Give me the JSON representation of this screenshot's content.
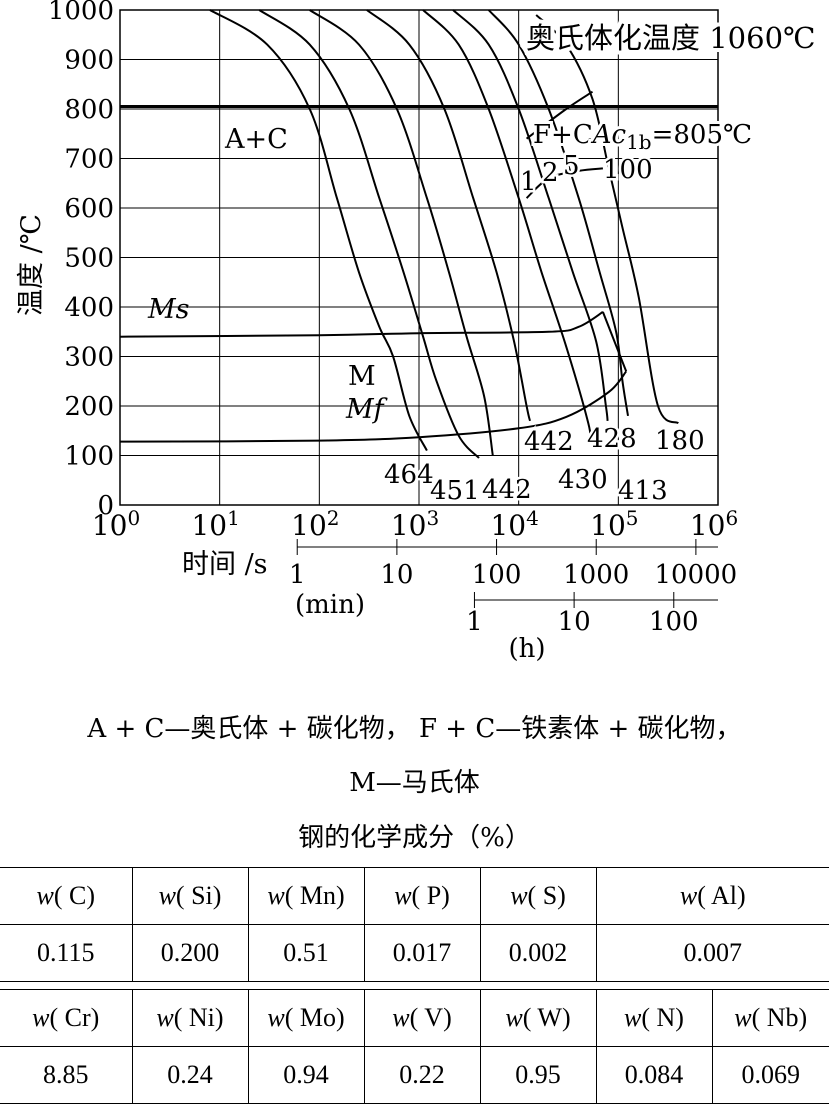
{
  "chart_data": {
    "type": "line",
    "title": "",
    "xlabel": "时间 /s",
    "ylabel": "温度 /℃",
    "xscale": "log",
    "xlim": [
      1,
      1000000
    ],
    "ylim": [
      0,
      1000
    ],
    "grid": true,
    "x_ticks": [
      {
        "value": 1,
        "label": "10",
        "exp": "0"
      },
      {
        "value": 10,
        "label": "10",
        "exp": "1"
      },
      {
        "value": 100,
        "label": "10",
        "exp": "2"
      },
      {
        "value": 1000,
        "label": "10",
        "exp": "3"
      },
      {
        "value": 10000,
        "label": "10",
        "exp": "4"
      },
      {
        "value": 100000,
        "label": "10",
        "exp": "5"
      },
      {
        "value": 1000000,
        "label": "10",
        "exp": "6"
      }
    ],
    "y_ticks": [
      "0",
      "100",
      "200",
      "300",
      "400",
      "500",
      "600",
      "700",
      "800",
      "900",
      "1000"
    ],
    "min_axis": {
      "unit": "(min)",
      "ticks": [
        {
          "value": 1,
          "label": "1"
        },
        {
          "value": 10,
          "label": "10"
        },
        {
          "value": 100,
          "label": "100"
        },
        {
          "value": 1000,
          "label": "1000"
        },
        {
          "value": 10000,
          "label": "10000"
        }
      ]
    },
    "hour_axis": {
      "unit": "(h)",
      "ticks": [
        {
          "value": 1,
          "label": "1"
        },
        {
          "value": 10,
          "label": "10"
        },
        {
          "value": 100,
          "label": "100"
        }
      ]
    },
    "austenitizing_label": "奥氏体化温度 1060℃",
    "ac1b": {
      "temp": 805,
      "label_prefix": "F+C",
      "label_sym": "Ac",
      "label_sub": "1b",
      "label_suffix": "=805℃"
    },
    "region_labels": {
      "ac": "A+C",
      "m": "M",
      "ms": "Ms",
      "mf": "Mf"
    },
    "ms_line": [
      [
        1,
        340
      ],
      [
        100,
        343
      ],
      [
        1000,
        347
      ],
      [
        20000,
        350
      ],
      [
        40000,
        360
      ],
      [
        70000,
        390
      ]
    ],
    "mf_line": [
      [
        1,
        128
      ],
      [
        100,
        130
      ],
      [
        1000,
        137
      ],
      [
        10000,
        155
      ],
      [
        30000,
        178
      ],
      [
        80000,
        228
      ],
      [
        120000,
        270
      ]
    ],
    "ms_drop": [
      [
        70000,
        390
      ],
      [
        120000,
        270
      ]
    ],
    "ferrite_start": [
      [
        12000,
        620
      ],
      [
        20000,
        660
      ],
      [
        40000,
        675
      ],
      [
        70000,
        680
      ]
    ],
    "ferrite_finish": [
      [
        12000,
        740
      ],
      [
        30000,
        800
      ],
      [
        55000,
        835
      ]
    ],
    "percent_labels": [
      "1",
      "2",
      "5",
      "100"
    ],
    "cooling_curves": [
      {
        "hardness": "464",
        "points": [
          [
            8,
            1000
          ],
          [
            30,
            930
          ],
          [
            80,
            800
          ],
          [
            150,
            620
          ],
          [
            250,
            470
          ],
          [
            400,
            360
          ],
          [
            550,
            300
          ],
          [
            800,
            180
          ],
          [
            1200,
            110
          ]
        ]
      },
      {
        "hardness": "451",
        "points": [
          [
            25,
            1000
          ],
          [
            80,
            930
          ],
          [
            200,
            800
          ],
          [
            400,
            620
          ],
          [
            700,
            470
          ],
          [
            1100,
            340
          ],
          [
            1500,
            250
          ],
          [
            2500,
            140
          ],
          [
            4000,
            95
          ]
        ]
      },
      {
        "hardness": "442",
        "points": [
          [
            80,
            1000
          ],
          [
            250,
            930
          ],
          [
            600,
            800
          ],
          [
            1200,
            620
          ],
          [
            2000,
            470
          ],
          [
            3000,
            340
          ],
          [
            4500,
            220
          ],
          [
            5500,
            100
          ]
        ]
      },
      {
        "hardness": "442",
        "points": [
          [
            300,
            1000
          ],
          [
            800,
            930
          ],
          [
            1800,
            800
          ],
          [
            3500,
            620
          ],
          [
            6000,
            470
          ],
          [
            9000,
            330
          ],
          [
            12000,
            200
          ],
          [
            13000,
            170
          ]
        ]
      },
      {
        "hardness": "430",
        "points": [
          [
            1100,
            1000
          ],
          [
            2500,
            930
          ],
          [
            5000,
            800
          ],
          [
            10000,
            620
          ],
          [
            17000,
            470
          ],
          [
            30000,
            320
          ],
          [
            50000,
            165
          ],
          [
            52000,
            130
          ]
        ]
      },
      {
        "hardness": "428",
        "points": [
          [
            2200,
            1000
          ],
          [
            5000,
            930
          ],
          [
            10000,
            800
          ],
          [
            20000,
            620
          ],
          [
            35000,
            470
          ],
          [
            60000,
            330
          ],
          [
            75000,
            200
          ],
          [
            78000,
            170
          ]
        ]
      },
      {
        "hardness": "413",
        "points": [
          [
            5000,
            1000
          ],
          [
            10000,
            930
          ],
          [
            20000,
            800
          ],
          [
            40000,
            620
          ],
          [
            65000,
            470
          ],
          [
            95000,
            350
          ],
          [
            110000,
            250
          ],
          [
            125000,
            180
          ]
        ]
      },
      {
        "hardness": "180",
        "points": [
          [
            15000,
            990
          ],
          [
            30000,
            930
          ],
          [
            55000,
            820
          ],
          [
            80000,
            680
          ],
          [
            110000,
            560
          ],
          [
            160000,
            420
          ],
          [
            250000,
            200
          ],
          [
            400000,
            165
          ]
        ]
      }
    ],
    "hardness_labels": [
      "464",
      "451",
      "442",
      "442",
      "430",
      "428",
      "413",
      "180"
    ]
  },
  "caption": {
    "line1": "A + C—奥氏体 + 碳化物， F + C—铁素体 + 碳化物，",
    "line2": "M—马氏体",
    "table_title": "钢的化学成分（%）"
  },
  "composition": {
    "row1": [
      {
        "label": "w",
        "el": "C",
        "value": "0.115"
      },
      {
        "label": "w",
        "el": "Si",
        "value": "0.200"
      },
      {
        "label": "w",
        "el": "Mn",
        "value": "0.51"
      },
      {
        "label": "w",
        "el": "P",
        "value": "0.017"
      },
      {
        "label": "w",
        "el": "S",
        "value": "0.002"
      },
      {
        "label": "w",
        "el": "Al",
        "value": "0.007"
      }
    ],
    "row2": [
      {
        "label": "w",
        "el": "Cr",
        "value": "8.85"
      },
      {
        "label": "w",
        "el": "Ni",
        "value": "0.24"
      },
      {
        "label": "w",
        "el": "Mo",
        "value": "0.94"
      },
      {
        "label": "w",
        "el": "V",
        "value": "0.22"
      },
      {
        "label": "w",
        "el": "W",
        "value": "0.95"
      },
      {
        "label": "w",
        "el": "N",
        "value": "0.084"
      },
      {
        "label": "w",
        "el": "Nb",
        "value": "0.069"
      }
    ]
  }
}
